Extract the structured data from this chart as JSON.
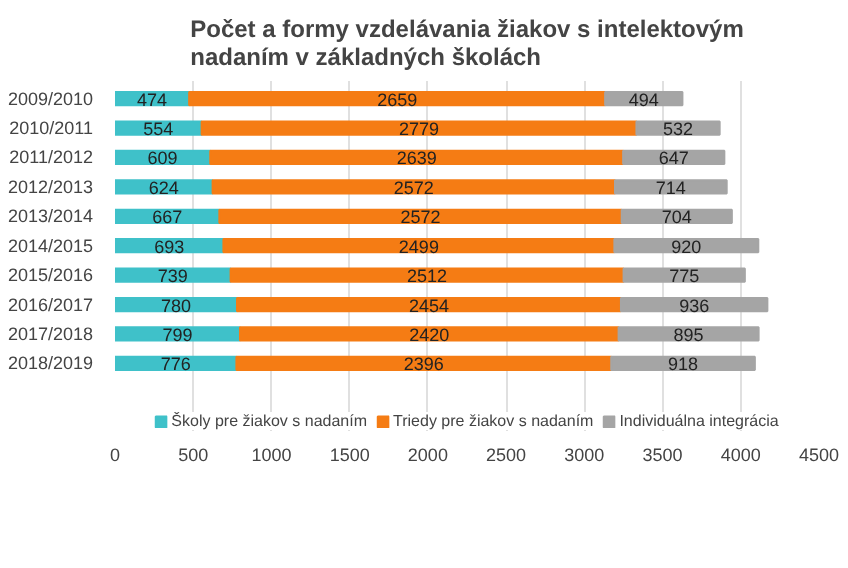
{
  "chart_data": {
    "type": "bar",
    "orientation": "horizontal",
    "stacked": true,
    "title": "Počet a formy vzdelávania žiakov s intelektovým\nnadaním v základných školách",
    "categories": [
      "2009/2010",
      "2010/2011",
      "2011/2012",
      "2012/2013",
      "2013/2014",
      "2014/2015",
      "2015/2016",
      "2016/2017",
      "2017/2018",
      "2018/2019"
    ],
    "series": [
      {
        "name": "Školy pre žiakov s nadaním",
        "color": "#3fc1c9",
        "values": [
          474,
          554,
          609,
          624,
          667,
          693,
          739,
          780,
          799,
          776
        ]
      },
      {
        "name": "Triedy pre žiakov s nadaním",
        "color": "#f57c14",
        "values": [
          2659,
          2779,
          2639,
          2572,
          2572,
          2499,
          2512,
          2454,
          2420,
          2396
        ]
      },
      {
        "name": "Individuálna integrácia",
        "color": "#a5a5a5",
        "values": [
          494,
          532,
          647,
          714,
          704,
          920,
          775,
          936,
          895,
          918
        ]
      }
    ],
    "xlim": [
      0,
      4500
    ],
    "xticks": [
      0,
      500,
      1000,
      1500,
      2000,
      2500,
      3000,
      3500,
      4000,
      4500
    ],
    "grid": "x",
    "legend": "bottom",
    "data_labels": true
  }
}
